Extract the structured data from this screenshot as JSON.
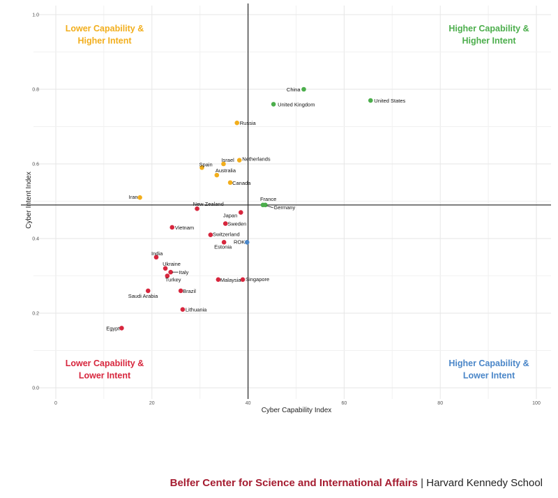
{
  "chart_data": {
    "type": "scatter",
    "xlabel": "Cyber Capability Index",
    "ylabel": "Cyber Intent Index",
    "xlim": [
      0,
      100
    ],
    "ylim": [
      0,
      1.0
    ],
    "xticks": [
      "0",
      "20",
      "40",
      "60",
      "80",
      "100"
    ],
    "yticks": [
      "0.0",
      "0.2",
      "0.4",
      "0.6",
      "0.8",
      "1.0"
    ],
    "grid": true,
    "reference_lines": {
      "x": 40,
      "y": 0.49
    },
    "quadrants": {
      "top_left": "Lower Capability &\nHigher Intent",
      "top_right": "Higher Capability &\nHigher Intent",
      "bottom_left": "Lower Capability &\nLower Intent",
      "bottom_right": "Higher Capability &\nLower Intent"
    },
    "colors": {
      "high_high": "#4cae4c",
      "low_high": "#f2ae1c",
      "low_low": "#d7263d",
      "high_low": "#4a86c8"
    },
    "points": [
      {
        "label": "China",
        "x": 51.6,
        "y": 0.8,
        "group": "high_high"
      },
      {
        "label": "United States",
        "x": 65.5,
        "y": 0.77,
        "group": "high_high"
      },
      {
        "label": "United Kingdom",
        "x": 45.3,
        "y": 0.76,
        "group": "high_high"
      },
      {
        "label": "France",
        "x": 43.1,
        "y": 0.49,
        "group": "high_high"
      },
      {
        "label": "Germany",
        "x": 43.6,
        "y": 0.49,
        "group": "high_high"
      },
      {
        "label": "Russia",
        "x": 37.7,
        "y": 0.71,
        "group": "low_high"
      },
      {
        "label": "Netherlands",
        "x": 38.2,
        "y": 0.61,
        "group": "low_high"
      },
      {
        "label": "Israel",
        "x": 34.9,
        "y": 0.6,
        "group": "low_high"
      },
      {
        "label": "Spain",
        "x": 30.4,
        "y": 0.59,
        "group": "low_high"
      },
      {
        "label": "Australia",
        "x": 33.5,
        "y": 0.57,
        "group": "low_high"
      },
      {
        "label": "Canada",
        "x": 36.3,
        "y": 0.55,
        "group": "low_high"
      },
      {
        "label": "Iran",
        "x": 17.5,
        "y": 0.51,
        "group": "low_high"
      },
      {
        "label": "New Zealand",
        "x": 29.4,
        "y": 0.48,
        "group": "low_low"
      },
      {
        "label": "Japan",
        "x": 38.5,
        "y": 0.47,
        "group": "low_low"
      },
      {
        "label": "Sweden",
        "x": 35.3,
        "y": 0.44,
        "group": "low_low"
      },
      {
        "label": "Vietnam",
        "x": 24.2,
        "y": 0.43,
        "group": "low_low"
      },
      {
        "label": "Switzerland",
        "x": 32.2,
        "y": 0.41,
        "group": "low_low"
      },
      {
        "label": "ROK",
        "x": 39.8,
        "y": 0.39,
        "group": "high_low"
      },
      {
        "label": "Estonia",
        "x": 35.0,
        "y": 0.39,
        "group": "low_low"
      },
      {
        "label": "India",
        "x": 20.9,
        "y": 0.35,
        "group": "low_low"
      },
      {
        "label": "Ukraine",
        "x": 22.8,
        "y": 0.32,
        "group": "low_low"
      },
      {
        "label": "Italy",
        "x": 23.9,
        "y": 0.31,
        "group": "low_low"
      },
      {
        "label": "Turkey",
        "x": 23.2,
        "y": 0.3,
        "group": "low_low"
      },
      {
        "label": "Singapore",
        "x": 38.9,
        "y": 0.29,
        "group": "low_low"
      },
      {
        "label": "Malaysia",
        "x": 33.8,
        "y": 0.29,
        "group": "low_low"
      },
      {
        "label": "Brazil",
        "x": 26.0,
        "y": 0.26,
        "group": "low_low"
      },
      {
        "label": "Saudi Arabia",
        "x": 19.2,
        "y": 0.26,
        "group": "low_low"
      },
      {
        "label": "Lithuania",
        "x": 26.4,
        "y": 0.21,
        "group": "low_low"
      },
      {
        "label": "Egypt",
        "x": 13.7,
        "y": 0.16,
        "group": "low_low"
      }
    ]
  },
  "footer": {
    "org": "Belfer Center for Science and International Affairs",
    "separator": "|",
    "school": "Harvard Kennedy School"
  }
}
